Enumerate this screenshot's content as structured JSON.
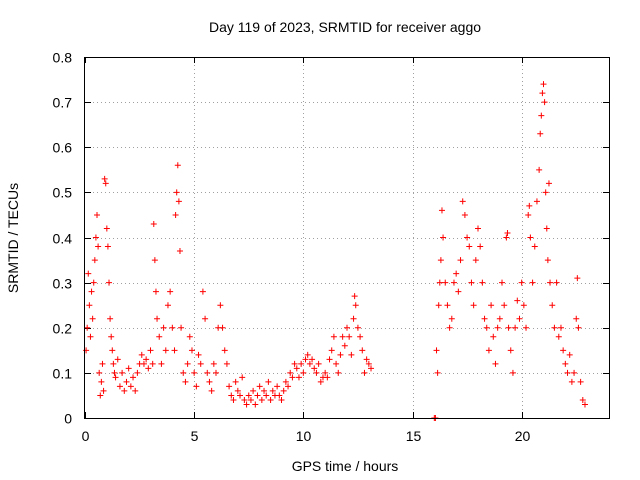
{
  "chart_data": {
    "type": "scatter",
    "title": "Day 119 of 2023, SRMTID for receiver aggo",
    "xlabel": "GPS time / hours",
    "ylabel": "SRMTID / TECUs",
    "xlim": [
      0,
      24
    ],
    "ylim": [
      0,
      0.8
    ],
    "xticks": [
      0,
      5,
      10,
      15,
      20
    ],
    "yticks": [
      0,
      0.1,
      0.2,
      0.3,
      0.4,
      0.5,
      0.6,
      0.7,
      0.8
    ],
    "xtick_labels": [
      "0",
      "5",
      "10",
      "15",
      "20"
    ],
    "ytick_labels": [
      "0",
      "0.1",
      "0.2",
      "0.3",
      "0.4",
      "0.5",
      "0.6",
      "0.7",
      "0.8"
    ],
    "grid": true,
    "marker": "+",
    "color": "#ff0000",
    "series": [
      {
        "name": "SRMTID",
        "points": [
          [
            0.05,
            0.15
          ],
          [
            0.1,
            0.2
          ],
          [
            0.15,
            0.32
          ],
          [
            0.2,
            0.25
          ],
          [
            0.25,
            0.18
          ],
          [
            0.3,
            0.28
          ],
          [
            0.35,
            0.22
          ],
          [
            0.4,
            0.3
          ],
          [
            0.45,
            0.35
          ],
          [
            0.5,
            0.4
          ],
          [
            0.55,
            0.45
          ],
          [
            0.6,
            0.38
          ],
          [
            0.65,
            0.1
          ],
          [
            0.7,
            0.05
          ],
          [
            0.75,
            0.08
          ],
          [
            0.8,
            0.12
          ],
          [
            0.85,
            0.06
          ],
          [
            0.9,
            0.53
          ],
          [
            0.95,
            0.52
          ],
          [
            1.0,
            0.42
          ],
          [
            1.05,
            0.38
          ],
          [
            1.1,
            0.3
          ],
          [
            1.15,
            0.22
          ],
          [
            1.2,
            0.18
          ],
          [
            1.25,
            0.15
          ],
          [
            1.3,
            0.12
          ],
          [
            1.35,
            0.1
          ],
          [
            1.4,
            0.09
          ],
          [
            1.5,
            0.13
          ],
          [
            1.6,
            0.07
          ],
          [
            1.7,
            0.1
          ],
          [
            1.8,
            0.06
          ],
          [
            1.9,
            0.08
          ],
          [
            2.0,
            0.11
          ],
          [
            2.1,
            0.07
          ],
          [
            2.2,
            0.09
          ],
          [
            2.3,
            0.06
          ],
          [
            2.4,
            0.1
          ],
          [
            2.5,
            0.12
          ],
          [
            2.6,
            0.14
          ],
          [
            2.7,
            0.12
          ],
          [
            2.8,
            0.13
          ],
          [
            2.9,
            0.11
          ],
          [
            3.0,
            0.15
          ],
          [
            3.1,
            0.12
          ],
          [
            3.15,
            0.43
          ],
          [
            3.2,
            0.35
          ],
          [
            3.25,
            0.28
          ],
          [
            3.3,
            0.22
          ],
          [
            3.4,
            0.18
          ],
          [
            3.5,
            0.12
          ],
          [
            3.6,
            0.2
          ],
          [
            3.7,
            0.15
          ],
          [
            3.8,
            0.25
          ],
          [
            3.9,
            0.28
          ],
          [
            4.0,
            0.2
          ],
          [
            4.1,
            0.15
          ],
          [
            4.15,
            0.45
          ],
          [
            4.2,
            0.5
          ],
          [
            4.25,
            0.56
          ],
          [
            4.3,
            0.48
          ],
          [
            4.35,
            0.37
          ],
          [
            4.4,
            0.2
          ],
          [
            4.5,
            0.1
          ],
          [
            4.6,
            0.08
          ],
          [
            4.7,
            0.12
          ],
          [
            4.8,
            0.18
          ],
          [
            4.9,
            0.15
          ],
          [
            5.0,
            0.1
          ],
          [
            5.1,
            0.07
          ],
          [
            5.2,
            0.14
          ],
          [
            5.3,
            0.12
          ],
          [
            5.4,
            0.28
          ],
          [
            5.5,
            0.22
          ],
          [
            5.6,
            0.1
          ],
          [
            5.7,
            0.08
          ],
          [
            5.8,
            0.06
          ],
          [
            5.9,
            0.12
          ],
          [
            6.0,
            0.1
          ],
          [
            6.1,
            0.2
          ],
          [
            6.2,
            0.25
          ],
          [
            6.3,
            0.2
          ],
          [
            6.4,
            0.15
          ],
          [
            6.5,
            0.12
          ],
          [
            6.6,
            0.07
          ],
          [
            6.7,
            0.05
          ],
          [
            6.8,
            0.04
          ],
          [
            6.9,
            0.08
          ],
          [
            7.0,
            0.06
          ],
          [
            7.1,
            0.05
          ],
          [
            7.2,
            0.09
          ],
          [
            7.3,
            0.04
          ],
          [
            7.4,
            0.03
          ],
          [
            7.5,
            0.05
          ],
          [
            7.6,
            0.04
          ],
          [
            7.7,
            0.06
          ],
          [
            7.8,
            0.03
          ],
          [
            7.9,
            0.05
          ],
          [
            8.0,
            0.07
          ],
          [
            8.1,
            0.04
          ],
          [
            8.2,
            0.06
          ],
          [
            8.3,
            0.05
          ],
          [
            8.4,
            0.08
          ],
          [
            8.5,
            0.04
          ],
          [
            8.6,
            0.06
          ],
          [
            8.7,
            0.05
          ],
          [
            8.8,
            0.07
          ],
          [
            8.9,
            0.05
          ],
          [
            9.0,
            0.04
          ],
          [
            9.1,
            0.06
          ],
          [
            9.2,
            0.08
          ],
          [
            9.3,
            0.07
          ],
          [
            9.4,
            0.1
          ],
          [
            9.5,
            0.09
          ],
          [
            9.6,
            0.12
          ],
          [
            9.7,
            0.11
          ],
          [
            9.8,
            0.09
          ],
          [
            9.9,
            0.12
          ],
          [
            10.0,
            0.1
          ],
          [
            10.1,
            0.13
          ],
          [
            10.2,
            0.14
          ],
          [
            10.3,
            0.12
          ],
          [
            10.4,
            0.13
          ],
          [
            10.5,
            0.11
          ],
          [
            10.6,
            0.1
          ],
          [
            10.7,
            0.12
          ],
          [
            10.8,
            0.08
          ],
          [
            10.9,
            0.09
          ],
          [
            11.0,
            0.1
          ],
          [
            11.1,
            0.09
          ],
          [
            11.2,
            0.13
          ],
          [
            11.3,
            0.15
          ],
          [
            11.4,
            0.18
          ],
          [
            11.5,
            0.12
          ],
          [
            11.6,
            0.1
          ],
          [
            11.7,
            0.14
          ],
          [
            11.8,
            0.18
          ],
          [
            11.9,
            0.16
          ],
          [
            12.0,
            0.2
          ],
          [
            12.1,
            0.18
          ],
          [
            12.2,
            0.14
          ],
          [
            12.3,
            0.22
          ],
          [
            12.35,
            0.27
          ],
          [
            12.4,
            0.25
          ],
          [
            12.5,
            0.2
          ],
          [
            12.6,
            0.18
          ],
          [
            12.7,
            0.15
          ],
          [
            12.8,
            0.1
          ],
          [
            12.9,
            0.13
          ],
          [
            13.0,
            0.12
          ],
          [
            13.1,
            0.11
          ],
          [
            16.0,
            0.0
          ],
          [
            16.05,
            0.0
          ],
          [
            16.1,
            0.15
          ],
          [
            16.15,
            0.1
          ],
          [
            16.2,
            0.25
          ],
          [
            16.25,
            0.3
          ],
          [
            16.3,
            0.35
          ],
          [
            16.35,
            0.46
          ],
          [
            16.4,
            0.4
          ],
          [
            16.5,
            0.3
          ],
          [
            16.6,
            0.25
          ],
          [
            16.7,
            0.2
          ],
          [
            16.8,
            0.22
          ],
          [
            16.9,
            0.3
          ],
          [
            17.0,
            0.32
          ],
          [
            17.1,
            0.28
          ],
          [
            17.2,
            0.35
          ],
          [
            17.3,
            0.48
          ],
          [
            17.4,
            0.45
          ],
          [
            17.5,
            0.4
          ],
          [
            17.6,
            0.38
          ],
          [
            17.7,
            0.3
          ],
          [
            17.8,
            0.25
          ],
          [
            17.9,
            0.35
          ],
          [
            18.0,
            0.42
          ],
          [
            18.1,
            0.38
          ],
          [
            18.2,
            0.3
          ],
          [
            18.3,
            0.22
          ],
          [
            18.4,
            0.2
          ],
          [
            18.5,
            0.15
          ],
          [
            18.6,
            0.25
          ],
          [
            18.7,
            0.18
          ],
          [
            18.8,
            0.12
          ],
          [
            18.9,
            0.2
          ],
          [
            19.0,
            0.22
          ],
          [
            19.1,
            0.3
          ],
          [
            19.2,
            0.25
          ],
          [
            19.3,
            0.4
          ],
          [
            19.35,
            0.41
          ],
          [
            19.4,
            0.2
          ],
          [
            19.5,
            0.15
          ],
          [
            19.6,
            0.1
          ],
          [
            19.7,
            0.2
          ],
          [
            19.8,
            0.26
          ],
          [
            19.9,
            0.22
          ],
          [
            20.0,
            0.3
          ],
          [
            20.1,
            0.25
          ],
          [
            20.2,
            0.2
          ],
          [
            20.3,
            0.45
          ],
          [
            20.35,
            0.47
          ],
          [
            20.4,
            0.4
          ],
          [
            20.5,
            0.3
          ],
          [
            20.6,
            0.38
          ],
          [
            20.7,
            0.48
          ],
          [
            20.8,
            0.55
          ],
          [
            20.85,
            0.63
          ],
          [
            20.9,
            0.67
          ],
          [
            20.95,
            0.72
          ],
          [
            21.0,
            0.74
          ],
          [
            21.05,
            0.7
          ],
          [
            21.1,
            0.5
          ],
          [
            21.15,
            0.42
          ],
          [
            21.2,
            0.35
          ],
          [
            21.25,
            0.52
          ],
          [
            21.3,
            0.3
          ],
          [
            21.4,
            0.25
          ],
          [
            21.5,
            0.2
          ],
          [
            21.6,
            0.3
          ],
          [
            21.7,
            0.18
          ],
          [
            21.8,
            0.2
          ],
          [
            21.9,
            0.15
          ],
          [
            22.0,
            0.12
          ],
          [
            22.1,
            0.1
          ],
          [
            22.2,
            0.14
          ],
          [
            22.3,
            0.08
          ],
          [
            22.4,
            0.1
          ],
          [
            22.5,
            0.22
          ],
          [
            22.55,
            0.31
          ],
          [
            22.6,
            0.2
          ],
          [
            22.7,
            0.08
          ],
          [
            22.8,
            0.04
          ],
          [
            22.9,
            0.03
          ]
        ]
      }
    ]
  }
}
